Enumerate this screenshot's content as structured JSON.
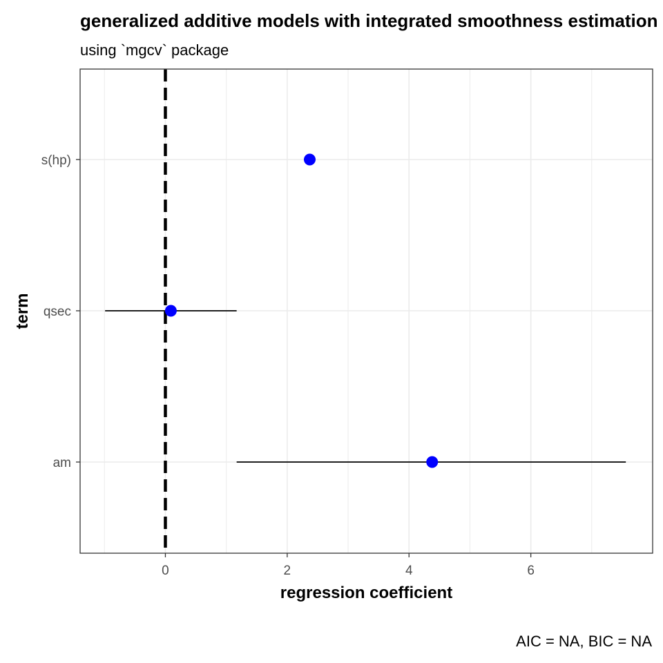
{
  "chart_data": {
    "type": "scatter",
    "title": "generalized additive models with integrated smoothness estimation",
    "subtitle": "using `mgcv` package",
    "caption": "AIC = NA, BIC = NA",
    "xlabel": "regression coefficient",
    "ylabel": "term",
    "xlim": [
      -1.4,
      8.0
    ],
    "xticks": [
      0,
      2,
      4,
      6
    ],
    "x_minor_gridlines": [
      -1,
      1,
      3,
      5,
      7
    ],
    "categories": [
      "s(hp)",
      "qsec",
      "am"
    ],
    "series": [
      {
        "points": [
          {
            "term": "s(hp)",
            "estimate": 2.37,
            "conf_low": null,
            "conf_high": null
          },
          {
            "term": "qsec",
            "estimate": 0.09,
            "conf_low": -0.99,
            "conf_high": 1.17
          },
          {
            "term": "am",
            "estimate": 4.38,
            "conf_low": 1.17,
            "conf_high": 7.56
          }
        ]
      }
    ],
    "reference_line": {
      "x": 0,
      "style": "dashed"
    },
    "grid": true,
    "legend": "none",
    "colors": {
      "point": "#0000ff",
      "errorbar": "#000000",
      "grid": "#ebebeb",
      "panel_border": "#333333",
      "reference_line": "#000000"
    }
  }
}
